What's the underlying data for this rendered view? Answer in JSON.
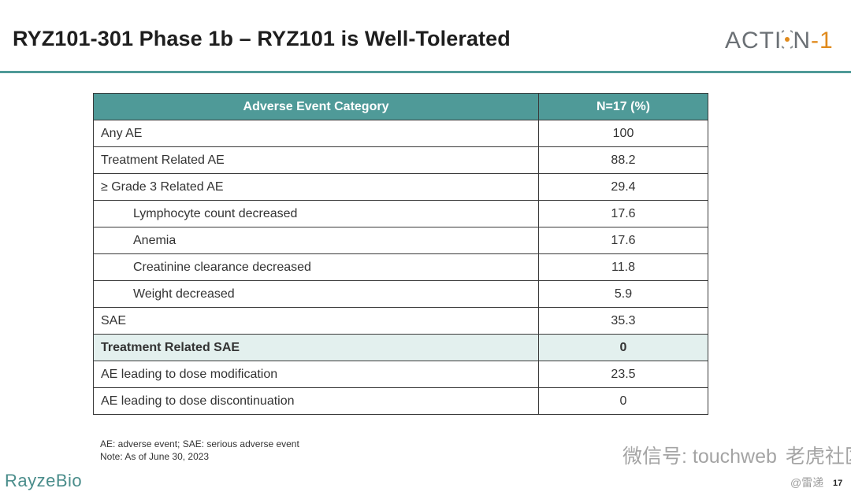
{
  "header": {
    "title": "RYZ101-301 Phase 1b – RYZ101 is Well-Tolerated",
    "brand_prefix": "ACTI",
    "brand_middle": "N",
    "brand_suffix": "1",
    "accent_color": "#4f9a98"
  },
  "table": {
    "columns": [
      "Adverse Event Category",
      "N=17 (%)"
    ],
    "rows": [
      {
        "label": "Any AE",
        "value": "100",
        "indent": false,
        "highlight": false
      },
      {
        "label": "Treatment Related AE",
        "value": "88.2",
        "indent": false,
        "highlight": false
      },
      {
        "label": "≥ Grade 3 Related AE",
        "value": "29.4",
        "indent": false,
        "highlight": false
      },
      {
        "label": "Lymphocyte count decreased",
        "value": "17.6",
        "indent": true,
        "highlight": false
      },
      {
        "label": "Anemia",
        "value": "17.6",
        "indent": true,
        "highlight": false
      },
      {
        "label": "Creatinine clearance decreased",
        "value": "11.8",
        "indent": true,
        "highlight": false
      },
      {
        "label": "Weight decreased",
        "value": "5.9",
        "indent": true,
        "highlight": false
      },
      {
        "label": "SAE",
        "value": "35.3",
        "indent": false,
        "highlight": false
      },
      {
        "label": "Treatment Related SAE",
        "value": "0",
        "indent": false,
        "highlight": true
      },
      {
        "label": "AE leading to dose modification",
        "value": "23.5",
        "indent": false,
        "highlight": false
      },
      {
        "label": "AE leading to dose discontinuation",
        "value": "0",
        "indent": false,
        "highlight": false
      }
    ]
  },
  "footnotes": {
    "abbreviations": "AE: adverse event; SAE: serious adverse event",
    "note": "Note: As of June 30, 2023"
  },
  "footer": {
    "logo": "RayzeBio",
    "page_number": "17",
    "watermark": "微信号: touchweb",
    "watermark_community": "老虎社区",
    "watermark_sub": "@雷递"
  }
}
